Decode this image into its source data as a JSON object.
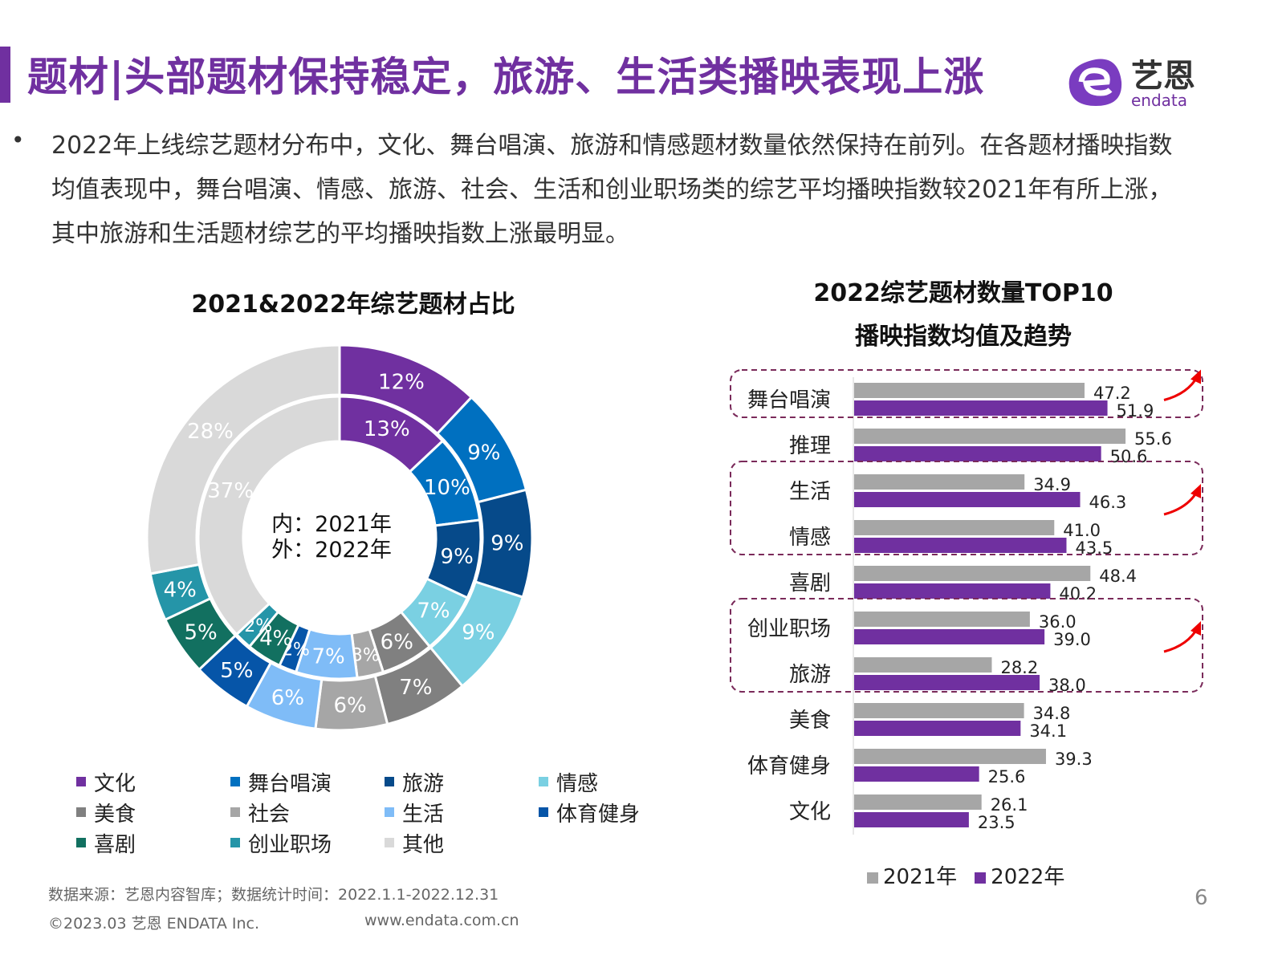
{
  "header": {
    "title": "题材|头部题材保持稳定，旅游、生活类播映表现上涨",
    "logo_text": "艺恩 endata"
  },
  "body": {
    "bullet": "•",
    "text": "2022年上线综艺题材分布中，文化、舞台唱演、旅游和情感题材数量依然保持在前列。在各题材播映指数均值表现中，舞台唱演、情感、旅游、社会、生活和创业职场类的综艺平均播映指数较2021年有所上涨，其中旅游和生活题材综艺的平均播映指数上涨最明显。"
  },
  "chart_data": [
    {
      "type": "pie",
      "title": "2021&2022年综艺题材占比",
      "center_label": [
        "内：2021年",
        "外：2022年"
      ],
      "categories": [
        "文化",
        "舞台唱演",
        "旅游",
        "情感",
        "美食",
        "社会",
        "生活",
        "体育健身",
        "喜剧",
        "创业职场",
        "其他"
      ],
      "colors": [
        "#7030a0",
        "#0070c0",
        "#064a8a",
        "#7ad0e2",
        "#808080",
        "#a6a6a6",
        "#7fbcf7",
        "#0655a8",
        "#127060",
        "#2595a8",
        "#d9d9d9"
      ],
      "series": [
        {
          "name": "2022年",
          "ring": "outer",
          "values": [
            12,
            9,
            9,
            9,
            7,
            6,
            6,
            5,
            5,
            4,
            28
          ]
        },
        {
          "name": "2021年",
          "ring": "inner",
          "values": [
            13,
            10,
            9,
            7,
            6,
            3,
            7,
            2,
            4,
            2,
            37
          ]
        }
      ],
      "legend_order": [
        "文化",
        "舞台唱演",
        "旅游",
        "情感",
        "美食",
        "社会",
        "生活",
        "体育健身",
        "喜剧",
        "创业职场",
        "其他"
      ],
      "legend": "bottom"
    },
    {
      "type": "bar",
      "orientation": "horizontal",
      "title": [
        "2022综艺题材数量TOP10",
        "播映指数均值及趋势"
      ],
      "categories": [
        "舞台唱演",
        "推理",
        "生活",
        "情感",
        "喜剧",
        "创业职场",
        "旅游",
        "美食",
        "体育健身",
        "文化"
      ],
      "series": [
        {
          "name": "2021年",
          "color": "#a6a6a6",
          "values": [
            47.2,
            55.6,
            34.9,
            41.0,
            48.4,
            36.0,
            28.2,
            34.8,
            39.3,
            26.1
          ]
        },
        {
          "name": "2022年",
          "color": "#7030a0",
          "values": [
            51.9,
            50.6,
            46.3,
            43.5,
            40.2,
            39.0,
            38.0,
            34.1,
            25.6,
            23.5
          ]
        }
      ],
      "highlight_groups": [
        [
          "舞台唱演"
        ],
        [
          "生活",
          "情感"
        ],
        [
          "创业职场",
          "旅游"
        ]
      ],
      "legend": "bottom"
    }
  ],
  "footer": {
    "source": "数据来源：艺恩内容智库；数据统计时间：2022.1.1-2022.12.31",
    "copyright": "©2023.03 艺恩 ENDATA Inc.",
    "url": "www.endata.com.cn",
    "page": "6"
  }
}
